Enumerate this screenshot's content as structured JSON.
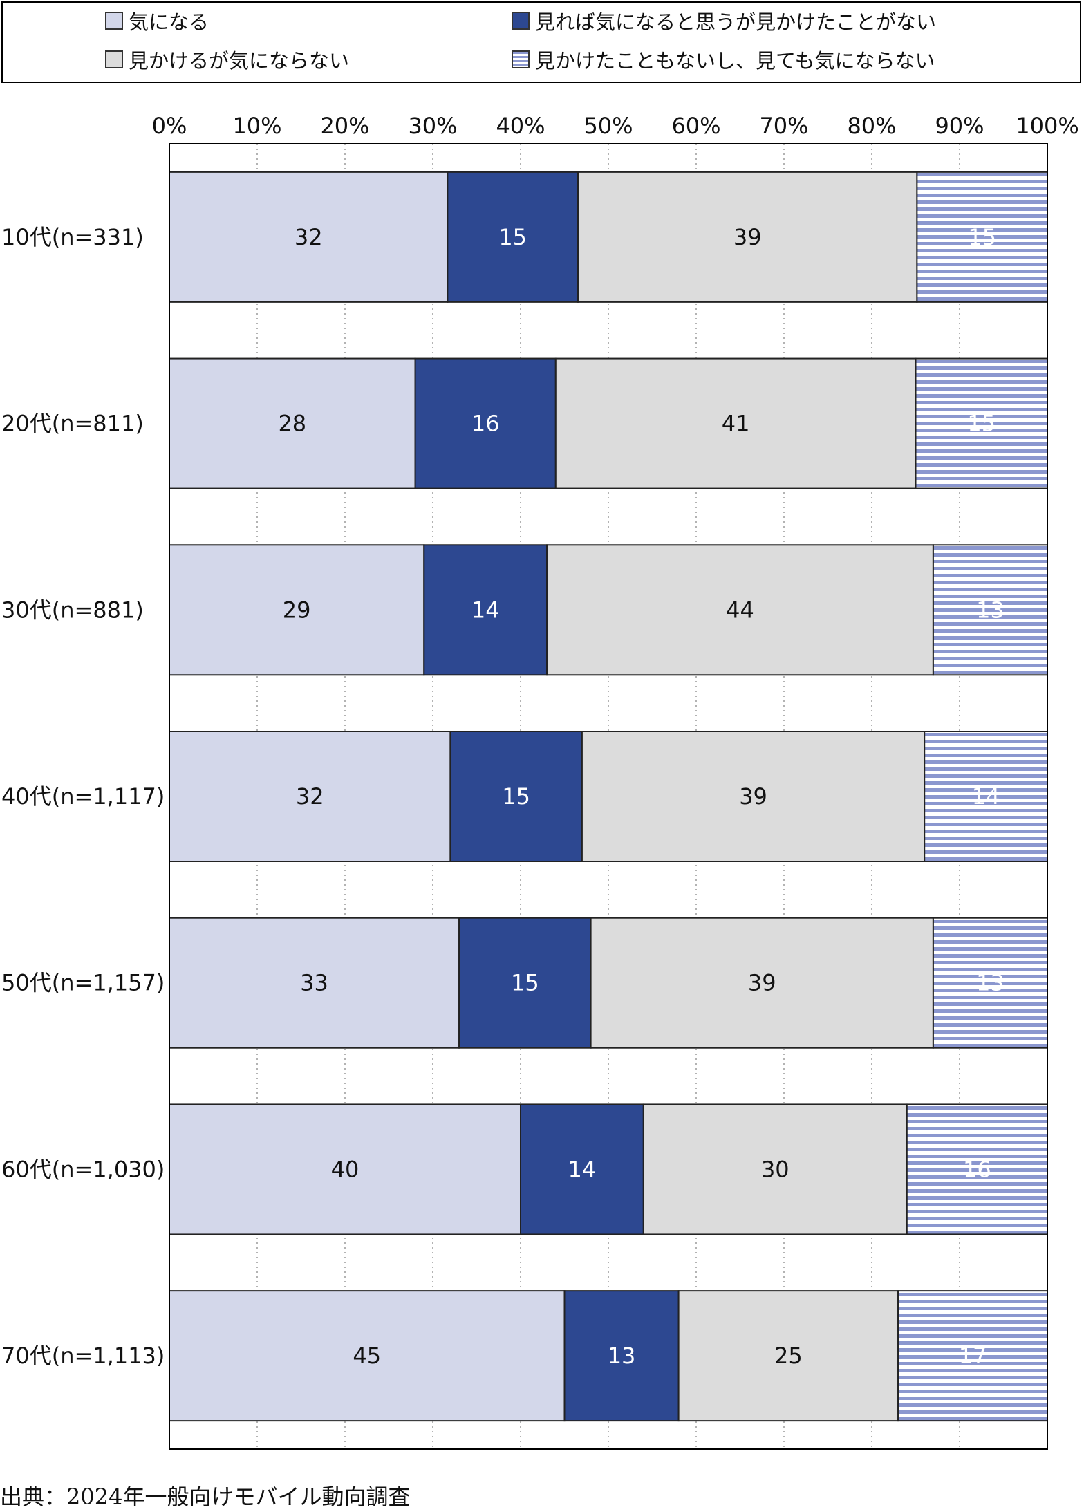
{
  "colors": {
    "ki_ni_naru": "#d3d7ea",
    "mireba": "#2d4891",
    "mikakeru": "#dcdcdc",
    "mikaketa_koto_mo_nai_bg": "#ffffff",
    "mikaketa_koto_mo_nai_stripe": "#8b97cf"
  },
  "chart_data": {
    "type": "bar",
    "orientation": "horizontal",
    "stacked": true,
    "x_axis": {
      "range": [
        0,
        100
      ],
      "tick_values": [
        0,
        10,
        20,
        30,
        40,
        50,
        60,
        70,
        80,
        90,
        100
      ],
      "tick_labels": [
        "0%",
        "10%",
        "20%",
        "30%",
        "40%",
        "50%",
        "60%",
        "70%",
        "80%",
        "90%",
        "100%"
      ],
      "position": "top",
      "grid": "dotted vertical"
    },
    "legend_placement": "top",
    "categories": [
      "10代(n=331)",
      "20代(n=811)",
      "30代(n=881)",
      "40代(n=1,117)",
      "50代(n=1,157)",
      "60代(n=1,030)",
      "70代(n=1,113)"
    ],
    "series": [
      {
        "name": "気になる",
        "values": [
          32,
          28,
          29,
          32,
          33,
          40,
          45
        ]
      },
      {
        "name": "見れば気になると思うが見かけたことがない",
        "values": [
          15,
          16,
          14,
          15,
          15,
          14,
          13
        ]
      },
      {
        "name": "見かけるが気にならない",
        "values": [
          39,
          41,
          44,
          39,
          39,
          30,
          25
        ]
      },
      {
        "name": "見かけたこともないし、見ても気にならない",
        "values": [
          15,
          15,
          13,
          14,
          13,
          16,
          17
        ]
      }
    ]
  },
  "legend": {
    "items": [
      {
        "label": "気になる"
      },
      {
        "label": "見れば気になると思うが見かけたことがない"
      },
      {
        "label": "見かけるが気にならない"
      },
      {
        "label": "見かけたこともないし、見ても気にならない"
      }
    ]
  },
  "source": "出典：2024年一般向けモバイル動向調査"
}
